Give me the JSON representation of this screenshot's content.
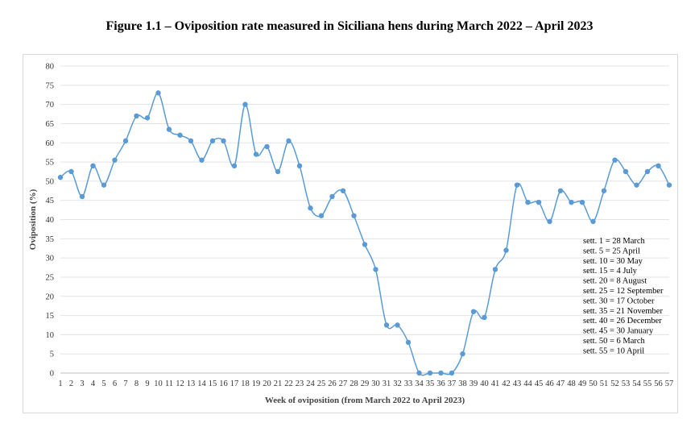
{
  "figure_title": "Figure 1.1 – Oviposition rate measured in Siciliana hens during March 2022 – April 2023",
  "chart_data": {
    "type": "line",
    "title": "",
    "xlabel": "Week of oviposition (from March 2022 to April 2023)",
    "ylabel": "Oviposition (%)",
    "ylim": [
      0,
      80
    ],
    "yticks": [
      0,
      5,
      10,
      15,
      20,
      25,
      30,
      35,
      40,
      45,
      50,
      55,
      60,
      65,
      70,
      75,
      80
    ],
    "grid": "horizontal",
    "line_color": "#5b9bd5",
    "x": [
      1,
      2,
      3,
      4,
      5,
      6,
      7,
      8,
      9,
      10,
      11,
      12,
      13,
      14,
      15,
      16,
      17,
      18,
      19,
      20,
      21,
      22,
      23,
      24,
      25,
      26,
      27,
      28,
      29,
      30,
      31,
      32,
      33,
      34,
      35,
      36,
      37,
      38,
      39,
      40,
      41,
      42,
      43,
      44,
      45,
      46,
      47,
      48,
      49,
      50,
      51,
      52,
      53,
      54,
      55,
      56,
      57
    ],
    "series": [
      {
        "values": [
          51,
          52.5,
          46,
          54,
          49,
          55.5,
          60.5,
          67,
          66.5,
          73,
          63.5,
          62,
          60.5,
          55.5,
          60.5,
          60.5,
          54,
          70,
          57,
          59,
          52.5,
          60.5,
          54,
          43,
          41,
          46,
          47.5,
          41,
          33.5,
          27,
          12.5,
          12.5,
          8,
          0,
          0,
          0,
          0,
          5,
          16,
          14.5,
          27,
          32,
          49,
          44.5,
          44.5,
          39.5,
          47.5,
          44.5,
          44.5,
          39.5,
          47.5,
          55.5,
          52.5,
          49,
          52.5,
          54,
          49
        ]
      }
    ],
    "legend_notes": [
      "sett. 1 = 28 March",
      "sett. 5 = 25 April",
      "sett. 10 = 30 May",
      "sett. 15 = 4 July",
      "sett. 20 = 8 August",
      "sett. 25 = 12 September",
      "sett. 30 = 17 October",
      "sett. 35 = 21 November",
      "sett. 40 = 26 December",
      "sett. 45 = 30 January",
      "sett. 50 = 6 March",
      "sett. 55 = 10 April"
    ]
  }
}
